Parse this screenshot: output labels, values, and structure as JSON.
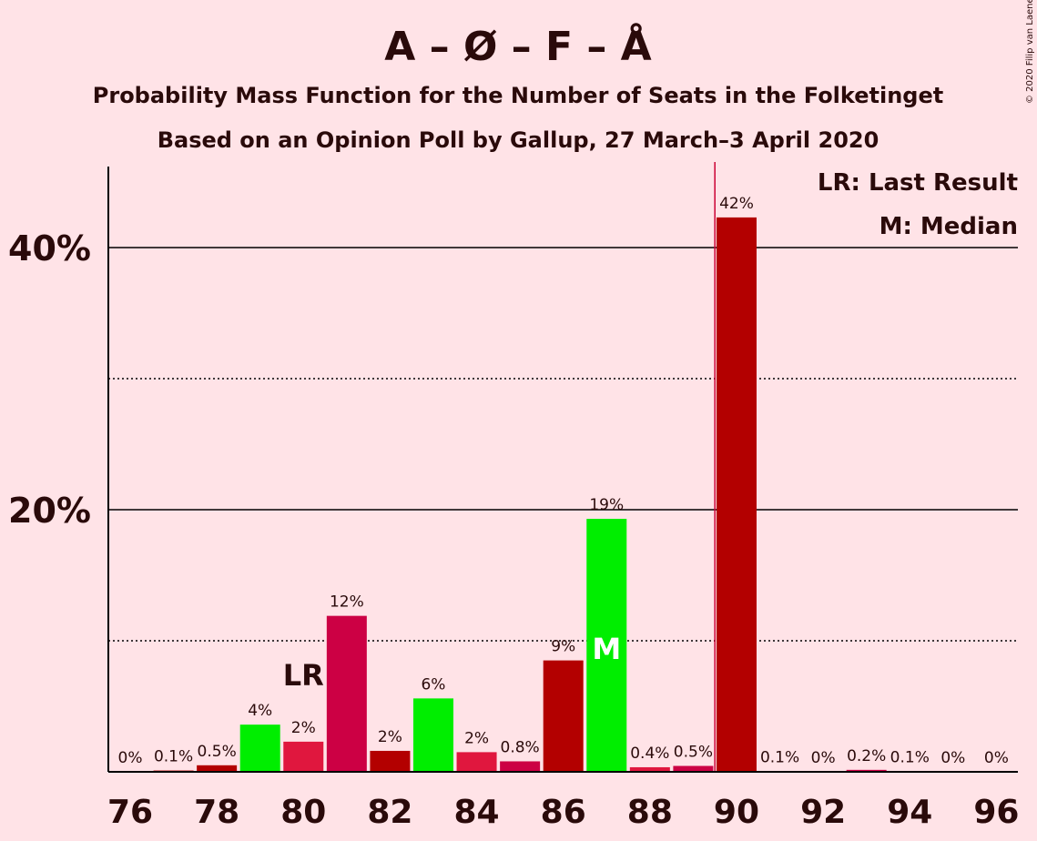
{
  "chart_data": {
    "type": "bar",
    "title": "A – Ø – F – Å",
    "subtitle": "Probability Mass Function for the Number of Seats in the Folketinget",
    "subtitle2": "Based on an Opinion Poll by Gallup, 27 March–3 April 2020",
    "copyright": "© 2020 Filip van Laenen",
    "legend": {
      "lr": "LR: Last Result",
      "m": "M: Median",
      "placement": "top-right"
    },
    "y_ticks": [
      {
        "value": 20,
        "label": "20%"
      },
      {
        "value": 40,
        "label": "40%"
      }
    ],
    "ylim": [
      0,
      46
    ],
    "xlim": [
      75.5,
      96.5
    ],
    "x_ticks": [
      {
        "value": 76,
        "label": "76"
      },
      {
        "value": 78,
        "label": "78"
      },
      {
        "value": 80,
        "label": "80"
      },
      {
        "value": 82,
        "label": "82"
      },
      {
        "value": 84,
        "label": "84"
      },
      {
        "value": 86,
        "label": "86"
      },
      {
        "value": 88,
        "label": "88"
      },
      {
        "value": 90,
        "label": "90"
      },
      {
        "value": 92,
        "label": "92"
      },
      {
        "value": 94,
        "label": "94"
      },
      {
        "value": 96,
        "label": "96"
      }
    ],
    "majority_line": 89.5,
    "colors": {
      "dark_red": "#b30000",
      "crimson": "#e0173e",
      "magenta_red": "#cc0044",
      "green": "#00ee00",
      "line": "#000000",
      "majority": "#cc0033",
      "text": "#2a0a0a"
    },
    "bars": [
      {
        "seats": 76,
        "value": 0.0,
        "label": "0%",
        "color": "dark_red"
      },
      {
        "seats": 77,
        "value": 0.1,
        "label": "0.1%",
        "color": "dark_red"
      },
      {
        "seats": 78,
        "value": 0.5,
        "label": "0.5%",
        "color": "dark_red"
      },
      {
        "seats": 79,
        "value": 3.6,
        "label": "4%",
        "color": "green"
      },
      {
        "seats": 80,
        "value": 2.3,
        "label": "2%",
        "color": "crimson",
        "marker": "LR"
      },
      {
        "seats": 81,
        "value": 11.9,
        "label": "12%",
        "color": "magenta_red"
      },
      {
        "seats": 82,
        "value": 1.6,
        "label": "2%",
        "color": "dark_red"
      },
      {
        "seats": 83,
        "value": 5.6,
        "label": "6%",
        "color": "green"
      },
      {
        "seats": 84,
        "value": 1.5,
        "label": "2%",
        "color": "crimson"
      },
      {
        "seats": 85,
        "value": 0.8,
        "label": "0.8%",
        "color": "magenta_red"
      },
      {
        "seats": 86,
        "value": 8.5,
        "label": "9%",
        "color": "dark_red"
      },
      {
        "seats": 87,
        "value": 19.3,
        "label": "19%",
        "color": "green",
        "marker": "M"
      },
      {
        "seats": 88,
        "value": 0.35,
        "label": "0.4%",
        "color": "crimson"
      },
      {
        "seats": 89,
        "value": 0.45,
        "label": "0.5%",
        "color": "magenta_red"
      },
      {
        "seats": 90,
        "value": 42.3,
        "label": "42%",
        "color": "dark_red"
      },
      {
        "seats": 91,
        "value": 0.05,
        "label": "0.1%",
        "color": "dark_red"
      },
      {
        "seats": 92,
        "value": 0.0,
        "label": "0%",
        "color": "dark_red"
      },
      {
        "seats": 93,
        "value": 0.15,
        "label": "0.2%",
        "color": "magenta_red"
      },
      {
        "seats": 94,
        "value": 0.05,
        "label": "0.1%",
        "color": "dark_red"
      },
      {
        "seats": 95,
        "value": 0.0,
        "label": "0%",
        "color": "dark_red"
      },
      {
        "seats": 96,
        "value": 0.0,
        "label": "0%",
        "color": "dark_red"
      }
    ]
  }
}
